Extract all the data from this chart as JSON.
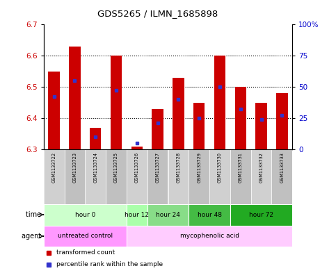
{
  "title": "GDS5265 / ILMN_1685898",
  "samples": [
    "GSM1133722",
    "GSM1133723",
    "GSM1133724",
    "GSM1133725",
    "GSM1133726",
    "GSM1133727",
    "GSM1133728",
    "GSM1133729",
    "GSM1133730",
    "GSM1133731",
    "GSM1133732",
    "GSM1133733"
  ],
  "bar_tops": [
    6.55,
    6.63,
    6.37,
    6.6,
    6.31,
    6.43,
    6.53,
    6.45,
    6.6,
    6.5,
    6.45,
    6.48
  ],
  "blue_dots": [
    6.47,
    6.52,
    6.34,
    6.49,
    6.32,
    6.385,
    6.46,
    6.4,
    6.5,
    6.43,
    6.395,
    6.41
  ],
  "bar_base": 6.3,
  "ylim_left": [
    6.3,
    6.7
  ],
  "ylim_right": [
    0,
    100
  ],
  "yticks_left": [
    6.3,
    6.4,
    6.5,
    6.6,
    6.7
  ],
  "yticks_right": [
    0,
    25,
    50,
    75,
    100
  ],
  "ytick_labels_right": [
    "0",
    "25",
    "50",
    "75",
    "100%"
  ],
  "bar_color": "#cc0000",
  "blue_dot_color": "#3333cc",
  "time_groups": [
    {
      "start": 0,
      "end": 3,
      "label": "hour 0",
      "color": "#ccffcc"
    },
    {
      "start": 4,
      "end": 4,
      "label": "hour 12",
      "color": "#aaffaa"
    },
    {
      "start": 5,
      "end": 6,
      "label": "hour 24",
      "color": "#88dd88"
    },
    {
      "start": 7,
      "end": 8,
      "label": "hour 48",
      "color": "#44bb44"
    },
    {
      "start": 9,
      "end": 11,
      "label": "hour 72",
      "color": "#22aa22"
    }
  ],
  "agent_groups": [
    {
      "start": 0,
      "end": 3,
      "label": "untreated control",
      "color": "#ff99ff"
    },
    {
      "start": 4,
      "end": 11,
      "label": "mycophenolic acid",
      "color": "#ffccff"
    }
  ],
  "sample_bg": "#cccccc",
  "plot_bg": "#ffffff",
  "left_label_color": "#cc0000",
  "right_label_color": "#0000cc"
}
